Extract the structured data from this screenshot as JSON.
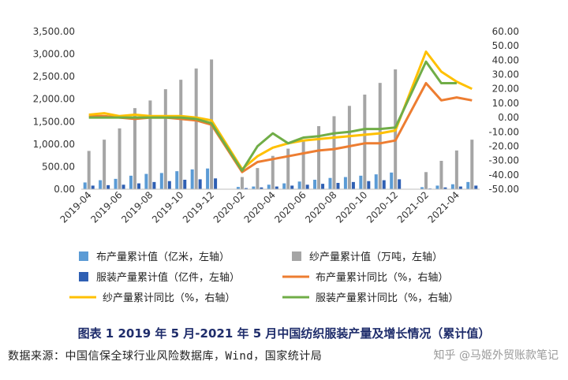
{
  "chart_data": {
    "type": "bar",
    "categories": [
      "2019-04",
      "2019-05",
      "2019-06",
      "2019-07",
      "2019-08",
      "2019-09",
      "2019-10",
      "2019-11",
      "2019-12",
      "2020-01",
      "2020-02",
      "2020-03",
      "2020-04",
      "2020-05",
      "2020-06",
      "2020-07",
      "2020-08",
      "2020-09",
      "2020-10",
      "2020-11",
      "2020-12",
      "2021-01",
      "2021-02",
      "2021-03",
      "2021-04",
      "2021-05"
    ],
    "x_tick_labels": [
      "2019-04",
      "2019-06",
      "2019-08",
      "2019-10",
      "2019-12",
      "2020-02",
      "2020-04",
      "2020-06",
      "2020-08",
      "2020-10",
      "2020-12",
      "2021-02",
      "2021-04"
    ],
    "y_left": {
      "ticks": [
        "0.00",
        "500.00",
        "1,000.00",
        "1,500.00",
        "2,000.00",
        "2,500.00",
        "3,000.00",
        "3,500.00"
      ],
      "range": [
        0,
        3500
      ]
    },
    "y_right": {
      "ticks": [
        "-50.00",
        "-40.00",
        "-30.00",
        "-20.00",
        "-10.00",
        "0.00",
        "10.00",
        "20.00",
        "30.00",
        "40.00",
        "50.00",
        "60.00"
      ],
      "range": [
        -50,
        60
      ]
    },
    "series": [
      {
        "name": "布产量累计值（亿米，左轴）",
        "type": "bar",
        "axis": "left",
        "color": "#5b9bd5",
        "values": [
          150,
          200,
          230,
          300,
          340,
          360,
          400,
          440,
          460,
          null,
          50,
          60,
          100,
          130,
          170,
          210,
          250,
          270,
          300,
          330,
          370,
          null,
          45,
          80,
          110,
          160
        ]
      },
      {
        "name": "纱产量累计值（万吨，左轴）",
        "type": "bar",
        "axis": "left",
        "color": "#a5a5a5",
        "values": [
          850,
          1100,
          1350,
          1800,
          1970,
          2220,
          2430,
          2680,
          2880,
          null,
          270,
          470,
          740,
          900,
          1100,
          1400,
          1620,
          1850,
          2100,
          2360,
          2660,
          null,
          380,
          630,
          860,
          1100
        ]
      },
      {
        "name": "服装产量累计值（亿件，左轴）",
        "type": "bar",
        "axis": "left",
        "color": "#2e5fb3",
        "values": [
          80,
          90,
          100,
          130,
          160,
          180,
          210,
          220,
          240,
          null,
          25,
          40,
          60,
          80,
          100,
          120,
          140,
          160,
          180,
          200,
          220,
          null,
          15,
          40,
          60,
          80
        ]
      },
      {
        "name": "布产量累计同比（%，右轴）",
        "type": "line",
        "axis": "right",
        "color": "#ed7d31",
        "values": [
          1,
          1,
          0,
          -1,
          0,
          0,
          -1,
          -2,
          -5,
          null,
          -38,
          -31,
          -29,
          -27,
          -25,
          -23,
          -22,
          -20,
          -18,
          -18,
          -16,
          null,
          24,
          12,
          14,
          12
        ]
      },
      {
        "name": "纱产量累计同比（%，右轴）",
        "type": "line",
        "axis": "right",
        "color": "#ffc000",
        "values": [
          2,
          3,
          1,
          2,
          1,
          1,
          1,
          0,
          -2,
          null,
          -36,
          -27,
          -21,
          -18,
          -16,
          -15,
          -14,
          -13,
          -12,
          -11,
          -9,
          null,
          46,
          32,
          25,
          20
        ]
      },
      {
        "name": "服装产量累计同比（%，右轴）",
        "type": "line",
        "axis": "right",
        "color": "#70ad47",
        "values": [
          0,
          0,
          0,
          0,
          0,
          0,
          0,
          -1,
          -4,
          null,
          -37,
          -20,
          -11,
          -18,
          -14,
          -13,
          -11,
          -10,
          -8,
          -8,
          -7,
          null,
          39,
          24,
          24,
          null
        ]
      }
    ],
    "legend_position": "bottom",
    "grid": false
  },
  "caption": "图表 1 2019 年 5 月-2021 年 5 月中国纺织服装产量及增长情况（累计值）",
  "source": "数据来源：中国信保全球行业风险数据库，Wind，国家统计局",
  "watermark": "知乎 @马姬外贸账款笔记"
}
